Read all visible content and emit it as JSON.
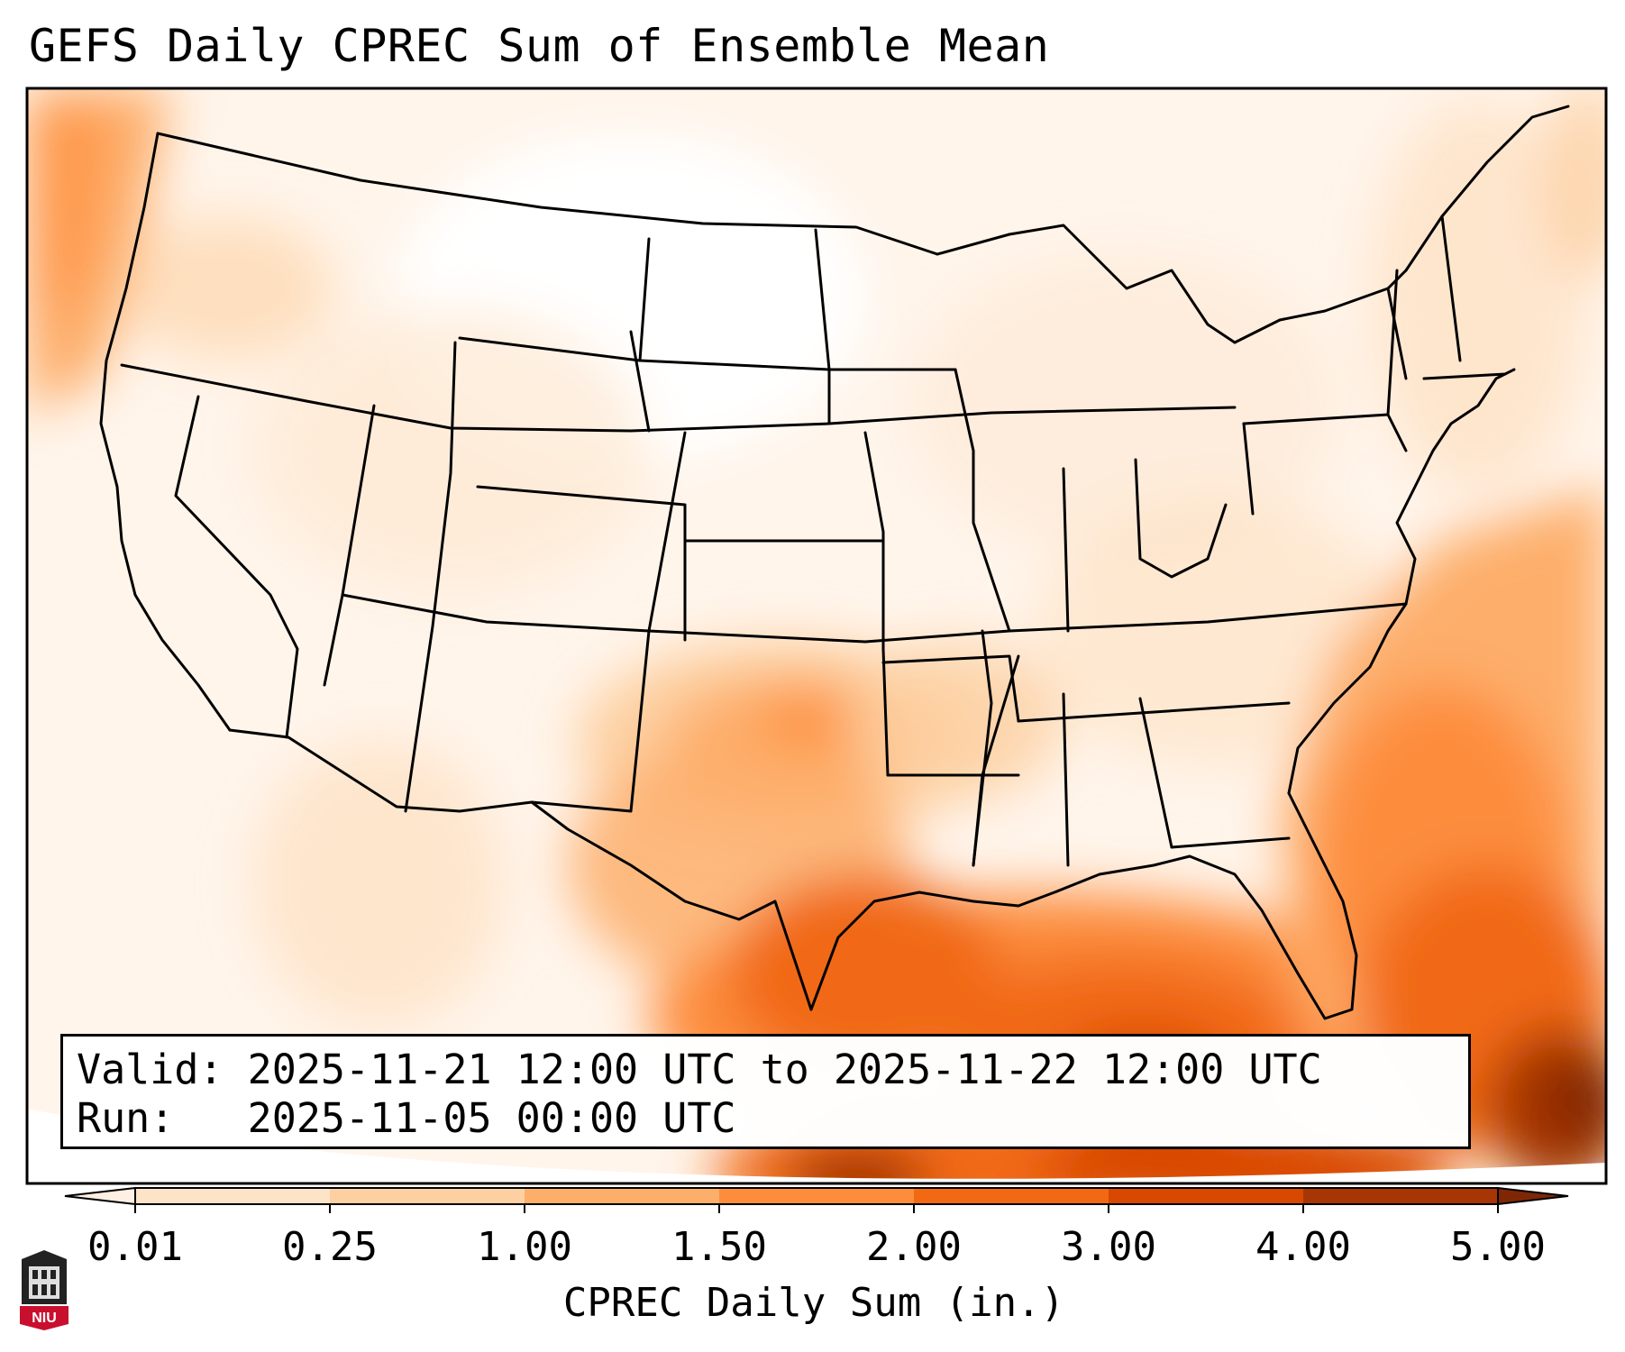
{
  "title": "GEFS Daily CPREC Sum of Ensemble Mean",
  "info": {
    "valid_label": "Valid:",
    "valid_value": "2025-11-21 12:00 UTC to 2025-11-22 12:00 UTC",
    "run_label": "Run:",
    "run_value": "2025-11-05 00:00 UTC"
  },
  "colorbar": {
    "label": "CPREC Daily Sum (in.)",
    "ticks": [
      "0.01",
      "0.25",
      "1.00",
      "1.50",
      "2.00",
      "3.00",
      "4.00",
      "5.00"
    ],
    "colors": [
      "#fef0e2",
      "#fde3c8",
      "#fdd0a2",
      "#fdae6b",
      "#fd8d3c",
      "#f16913",
      "#d94801",
      "#a63603",
      "#7f2704"
    ],
    "extend": "both"
  },
  "logo": {
    "text": "NIU",
    "color": "#c8102e"
  }
}
